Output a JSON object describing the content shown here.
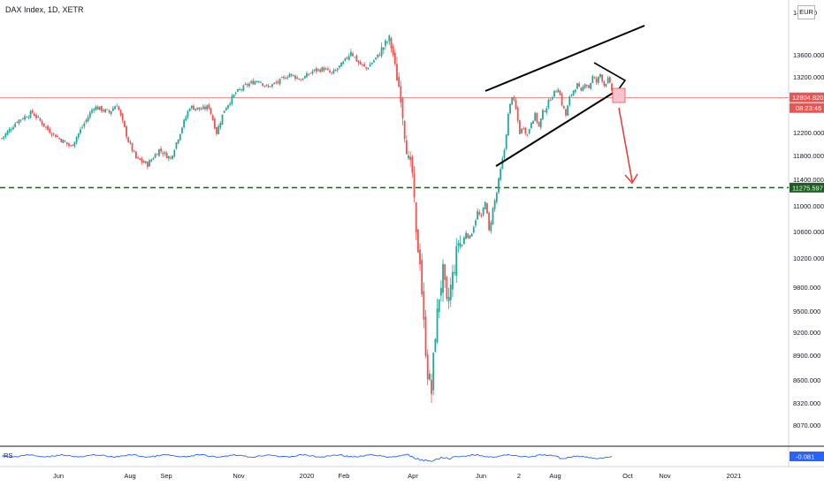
{
  "header": {
    "title": "DAX Index, 1D, XETR",
    "currency": "EUR"
  },
  "chart_data": {
    "type": "candlestick",
    "y_ticks": [
      14000,
      13600,
      13200,
      12800,
      12200,
      11800,
      11400,
      11000,
      10600,
      10200,
      9800,
      9500,
      9200,
      8900,
      8600,
      8320,
      8070
    ],
    "ylim": [
      7800,
      14200
    ],
    "x_ticks": [
      "Jun",
      "Aug",
      "Sep",
      "Nov",
      "2020",
      "Feb",
      "Apr",
      "Jun",
      "2",
      "Aug",
      "Oct",
      "Nov",
      "2021"
    ],
    "price_label": "12804.820",
    "countdown": "08:23:46",
    "support_level": 11275.597,
    "support_label": "11275.597",
    "indicator": {
      "name": "RS",
      "value": "-0.081"
    },
    "colors": {
      "up": "#26a69a",
      "down": "#ef5350",
      "price_line": "#ef5350",
      "support": "#1b5e20",
      "rs_line": "#2962ff"
    },
    "annotations": {
      "wedge": "rising wedge drawn over Jun–Sep 2020 candles",
      "arrow": "red arrow pointing down from the wedge apex"
    },
    "anchors": [
      {
        "i": 0,
        "c": 12100
      },
      {
        "i": 8,
        "c": 12400
      },
      {
        "i": 16,
        "c": 12550
      },
      {
        "i": 24,
        "c": 12250
      },
      {
        "i": 30,
        "c": 12100
      },
      {
        "i": 36,
        "c": 11950
      },
      {
        "i": 42,
        "c": 12300
      },
      {
        "i": 48,
        "c": 12650
      },
      {
        "i": 56,
        "c": 12550
      },
      {
        "i": 60,
        "c": 12700
      },
      {
        "i": 66,
        "c": 12050
      },
      {
        "i": 70,
        "c": 11750
      },
      {
        "i": 76,
        "c": 11650
      },
      {
        "i": 82,
        "c": 11900
      },
      {
        "i": 88,
        "c": 11750
      },
      {
        "i": 94,
        "c": 12300
      },
      {
        "i": 98,
        "c": 12650
      },
      {
        "i": 104,
        "c": 12600
      },
      {
        "i": 108,
        "c": 12650
      },
      {
        "i": 112,
        "c": 12200
      },
      {
        "i": 116,
        "c": 12600
      },
      {
        "i": 122,
        "c": 12900
      },
      {
        "i": 128,
        "c": 13050
      },
      {
        "i": 134,
        "c": 13150
      },
      {
        "i": 138,
        "c": 13000
      },
      {
        "i": 144,
        "c": 13100
      },
      {
        "i": 150,
        "c": 13250
      },
      {
        "i": 156,
        "c": 13150
      },
      {
        "i": 162,
        "c": 13300
      },
      {
        "i": 168,
        "c": 13350
      },
      {
        "i": 172,
        "c": 13250
      },
      {
        "i": 178,
        "c": 13450
      },
      {
        "i": 182,
        "c": 13650
      },
      {
        "i": 186,
        "c": 13450
      },
      {
        "i": 190,
        "c": 13350
      },
      {
        "i": 194,
        "c": 13500
      },
      {
        "i": 198,
        "c": 13650
      },
      {
        "i": 202,
        "c": 13750
      },
      {
        "i": 204,
        "c": 13600
      },
      {
        "i": 206,
        "c": 13200
      },
      {
        "i": 208,
        "c": 12850
      },
      {
        "i": 210,
        "c": 12200
      },
      {
        "i": 212,
        "c": 11700
      },
      {
        "i": 214,
        "c": 11500
      },
      {
        "i": 216,
        "c": 10500
      },
      {
        "i": 218,
        "c": 10200
      },
      {
        "i": 220,
        "c": 9300
      },
      {
        "i": 222,
        "c": 8700
      },
      {
        "i": 224,
        "c": 8450
      },
      {
        "i": 226,
        "c": 9200
      },
      {
        "i": 228,
        "c": 9700
      },
      {
        "i": 230,
        "c": 10000
      },
      {
        "i": 232,
        "c": 9550
      },
      {
        "i": 234,
        "c": 9800
      },
      {
        "i": 236,
        "c": 10100
      },
      {
        "i": 238,
        "c": 10450
      },
      {
        "i": 240,
        "c": 10400
      },
      {
        "i": 242,
        "c": 10600
      },
      {
        "i": 244,
        "c": 10500
      },
      {
        "i": 246,
        "c": 10700
      },
      {
        "i": 248,
        "c": 10900
      },
      {
        "i": 250,
        "c": 10800
      },
      {
        "i": 252,
        "c": 11100
      },
      {
        "i": 254,
        "c": 10600
      },
      {
        "i": 256,
        "c": 10950
      },
      {
        "i": 258,
        "c": 11200
      },
      {
        "i": 260,
        "c": 11550
      },
      {
        "i": 262,
        "c": 11900
      },
      {
        "i": 264,
        "c": 12500
      },
      {
        "i": 266,
        "c": 12850
      },
      {
        "i": 268,
        "c": 12600
      },
      {
        "i": 270,
        "c": 12200
      },
      {
        "i": 272,
        "c": 12300
      },
      {
        "i": 274,
        "c": 12150
      },
      {
        "i": 276,
        "c": 12400
      },
      {
        "i": 278,
        "c": 12500
      },
      {
        "i": 280,
        "c": 12300
      },
      {
        "i": 282,
        "c": 12550
      },
      {
        "i": 284,
        "c": 12650
      },
      {
        "i": 286,
        "c": 12800
      },
      {
        "i": 288,
        "c": 12900
      },
      {
        "i": 290,
        "c": 13000
      },
      {
        "i": 292,
        "c": 12700
      },
      {
        "i": 294,
        "c": 12500
      },
      {
        "i": 296,
        "c": 12800
      },
      {
        "i": 298,
        "c": 12950
      },
      {
        "i": 300,
        "c": 13050
      },
      {
        "i": 302,
        "c": 12900
      },
      {
        "i": 304,
        "c": 13100
      },
      {
        "i": 306,
        "c": 13000
      },
      {
        "i": 308,
        "c": 13200
      },
      {
        "i": 310,
        "c": 13100
      },
      {
        "i": 312,
        "c": 13250
      },
      {
        "i": 314,
        "c": 13050
      },
      {
        "i": 316,
        "c": 13150
      },
      {
        "i": 318,
        "c": 12950
      }
    ]
  }
}
